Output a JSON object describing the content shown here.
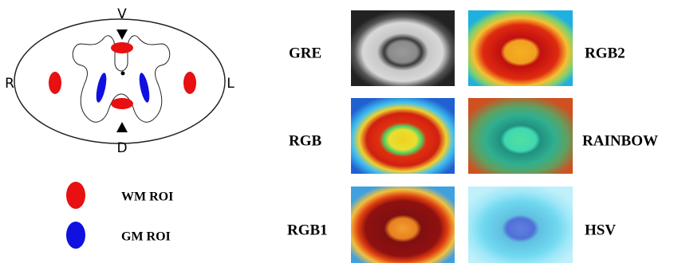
{
  "diagram": {
    "labels": {
      "top": "V",
      "bottom": "D",
      "left": "R",
      "right": "L"
    }
  },
  "legend": [
    {
      "label": "WM ROI"
    },
    {
      "label": "GM ROI"
    }
  ],
  "images": [
    {
      "label": "GRE"
    },
    {
      "label": "RGB2"
    },
    {
      "label": "RGB"
    },
    {
      "label": "RAINBOW"
    },
    {
      "label": "RGB1"
    },
    {
      "label": "HSV"
    }
  ]
}
